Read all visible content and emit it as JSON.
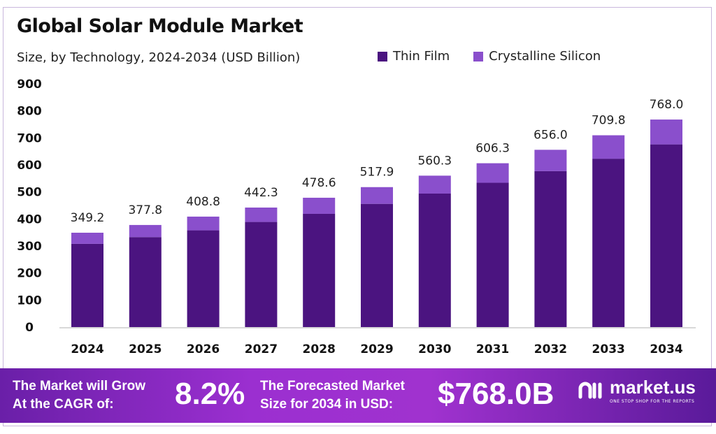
{
  "chart_data": {
    "type": "bar",
    "stacked": true,
    "title": "Global Solar Module Market",
    "subtitle": "Size, by Technology, 2024-2034 (USD Billion)",
    "categories": [
      "2024",
      "2025",
      "2026",
      "2027",
      "2028",
      "2029",
      "2030",
      "2031",
      "2032",
      "2033",
      "2034"
    ],
    "series": [
      {
        "name": "Thin Film",
        "color": "#4b1480",
        "values": [
          308,
          333,
          358,
          389,
          419,
          456,
          494,
          534,
          577,
          623,
          676
        ]
      },
      {
        "name": "Crystalline Silicon",
        "color": "#8a4fcc",
        "values": [
          41.2,
          44.8,
          50.8,
          53.3,
          59.6,
          61.9,
          66.3,
          72.3,
          79.0,
          86.8,
          92.0
        ]
      }
    ],
    "totals": [
      "349.2",
      "377.8",
      "408.8",
      "442.3",
      "478.6",
      "517.9",
      "560.3",
      "606.3",
      "656.0",
      "709.8",
      "768.0"
    ],
    "yticks": [
      0,
      100,
      200,
      300,
      400,
      500,
      600,
      700,
      800,
      900
    ],
    "ylim": [
      0,
      900
    ],
    "xlabel": "",
    "ylabel": "",
    "grid": false,
    "legend_position": "top-right"
  },
  "banner": {
    "cagr_label_1": "The Market will Grow",
    "cagr_label_2": "At the CAGR of:",
    "cagr_value": "8.2%",
    "forecast_label_1": "The Forecasted Market",
    "forecast_label_2": "Size for 2034 in USD:",
    "forecast_value": "$768.0B",
    "logo_text": "market.us",
    "logo_tagline": "ONE STOP SHOP FOR THE REPORTS"
  }
}
